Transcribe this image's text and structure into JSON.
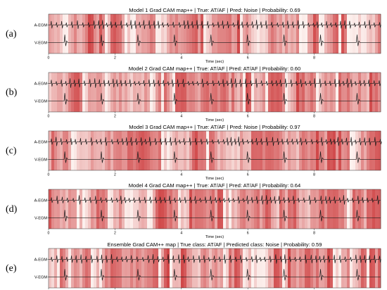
{
  "figure": {
    "colors": {
      "background": "#ffffff",
      "heat_low": "#fdf3f0",
      "heat_high": "#c8282a",
      "trace": "#1a1a1a",
      "frame": "#333333"
    },
    "leads": [
      "A-EGM",
      "V-EGM"
    ],
    "x_axis_label": "Time (sec)",
    "x_ticks": [
      "0",
      "2",
      "4",
      "6",
      "8"
    ],
    "x_range": [
      0,
      10
    ],
    "panels": [
      {
        "letter": "(a)",
        "title": "Model 1 Grad CAM map++ | True: AT/AF | Pred: Noise | Probability: 0.69",
        "model": "Model 1",
        "true_label": "AT/AF",
        "predicted": "Noise",
        "probability": 0.69
      },
      {
        "letter": "(b)",
        "title": "Model 2 Grad CAM map++ | True: AT/AF | Pred: AT/AF | Probability: 0.60",
        "model": "Model 2",
        "true_label": "AT/AF",
        "predicted": "AT/AF",
        "probability": 0.6
      },
      {
        "letter": "(c)",
        "title": "Model 3 Grad CAM map++ | True: AT/AF | Pred: Noise | Probability: 0.97",
        "model": "Model 3",
        "true_label": "AT/AF",
        "predicted": "Noise",
        "probability": 0.97
      },
      {
        "letter": "(d)",
        "title": "Model 4 Grad CAM map++ | True: AT/AF | Pred: AT/AF | Probability: 0.64",
        "model": "Model 4",
        "true_label": "AT/AF",
        "predicted": "AT/AF",
        "probability": 0.64
      },
      {
        "letter": "(e)",
        "title": "Ensemble Grad CAM++ map | True class: AT/AF | Predicted class: Noise | Probability: 0.59",
        "model": "Ensemble",
        "true_label": "AT/AF",
        "predicted": "Noise",
        "probability": 0.59
      }
    ]
  },
  "chart_data": [
    {
      "type": "heatmap",
      "title": "Model 1 Grad CAM map++ | True: AT/AF | Pred: Noise | Probability: 0.69",
      "xlabel": "Time (sec)",
      "ylabel": "",
      "xlim": [
        0,
        10
      ],
      "x_ticks": [
        0,
        2,
        4,
        6,
        8
      ],
      "series_labels": [
        "A-EGM",
        "V-EGM"
      ],
      "colormap": "Reds",
      "v_egm_beats_sec": [
        0.5,
        1.6,
        2.7,
        3.8,
        4.9,
        6.0,
        7.1,
        8.2,
        9.3
      ]
    },
    {
      "type": "heatmap",
      "title": "Model 2 Grad CAM map++ | True: AT/AF | Pred: AT/AF | Probability: 0.60",
      "xlabel": "Time (sec)",
      "ylabel": "",
      "xlim": [
        0,
        10
      ],
      "x_ticks": [
        0,
        2,
        4,
        6,
        8
      ],
      "series_labels": [
        "A-EGM",
        "V-EGM"
      ],
      "colormap": "Reds",
      "v_egm_beats_sec": [
        0.5,
        1.6,
        2.7,
        3.8,
        4.9,
        6.0,
        7.1,
        8.2,
        9.3
      ]
    },
    {
      "type": "heatmap",
      "title": "Model 3 Grad CAM map++ | True: AT/AF | Pred: Noise | Probability: 0.97",
      "xlabel": "Time (sec)",
      "ylabel": "",
      "xlim": [
        0,
        10
      ],
      "x_ticks": [
        0,
        2,
        4,
        6,
        8
      ],
      "series_labels": [
        "A-EGM",
        "V-EGM"
      ],
      "colormap": "Reds",
      "v_egm_beats_sec": [
        0.5,
        1.6,
        2.7,
        3.8,
        4.9,
        6.0,
        7.1,
        8.2,
        9.3
      ]
    },
    {
      "type": "heatmap",
      "title": "Model 4 Grad CAM map++ | True: AT/AF | Pred: AT/AF | Probability: 0.64",
      "xlabel": "Time (sec)",
      "ylabel": "",
      "xlim": [
        0,
        10
      ],
      "x_ticks": [
        0,
        2,
        4,
        6,
        8
      ],
      "series_labels": [
        "A-EGM",
        "V-EGM"
      ],
      "colormap": "Reds",
      "v_egm_beats_sec": [
        0.5,
        1.6,
        2.7,
        3.8,
        4.9,
        6.0,
        7.1,
        8.2,
        9.3
      ]
    },
    {
      "type": "heatmap",
      "title": "Ensemble Grad CAM++ map | True class: AT/AF | Predicted class: Noise | Probability: 0.59",
      "xlabel": "Time (sec)",
      "ylabel": "",
      "xlim": [
        0,
        10
      ],
      "x_ticks": [
        0,
        2,
        4,
        6,
        8
      ],
      "series_labels": [
        "A-EGM",
        "V-EGM"
      ],
      "colormap": "Reds",
      "v_egm_beats_sec": [
        0.5,
        1.6,
        2.7,
        3.8,
        4.9,
        6.0,
        7.1,
        8.2,
        9.3
      ]
    }
  ]
}
